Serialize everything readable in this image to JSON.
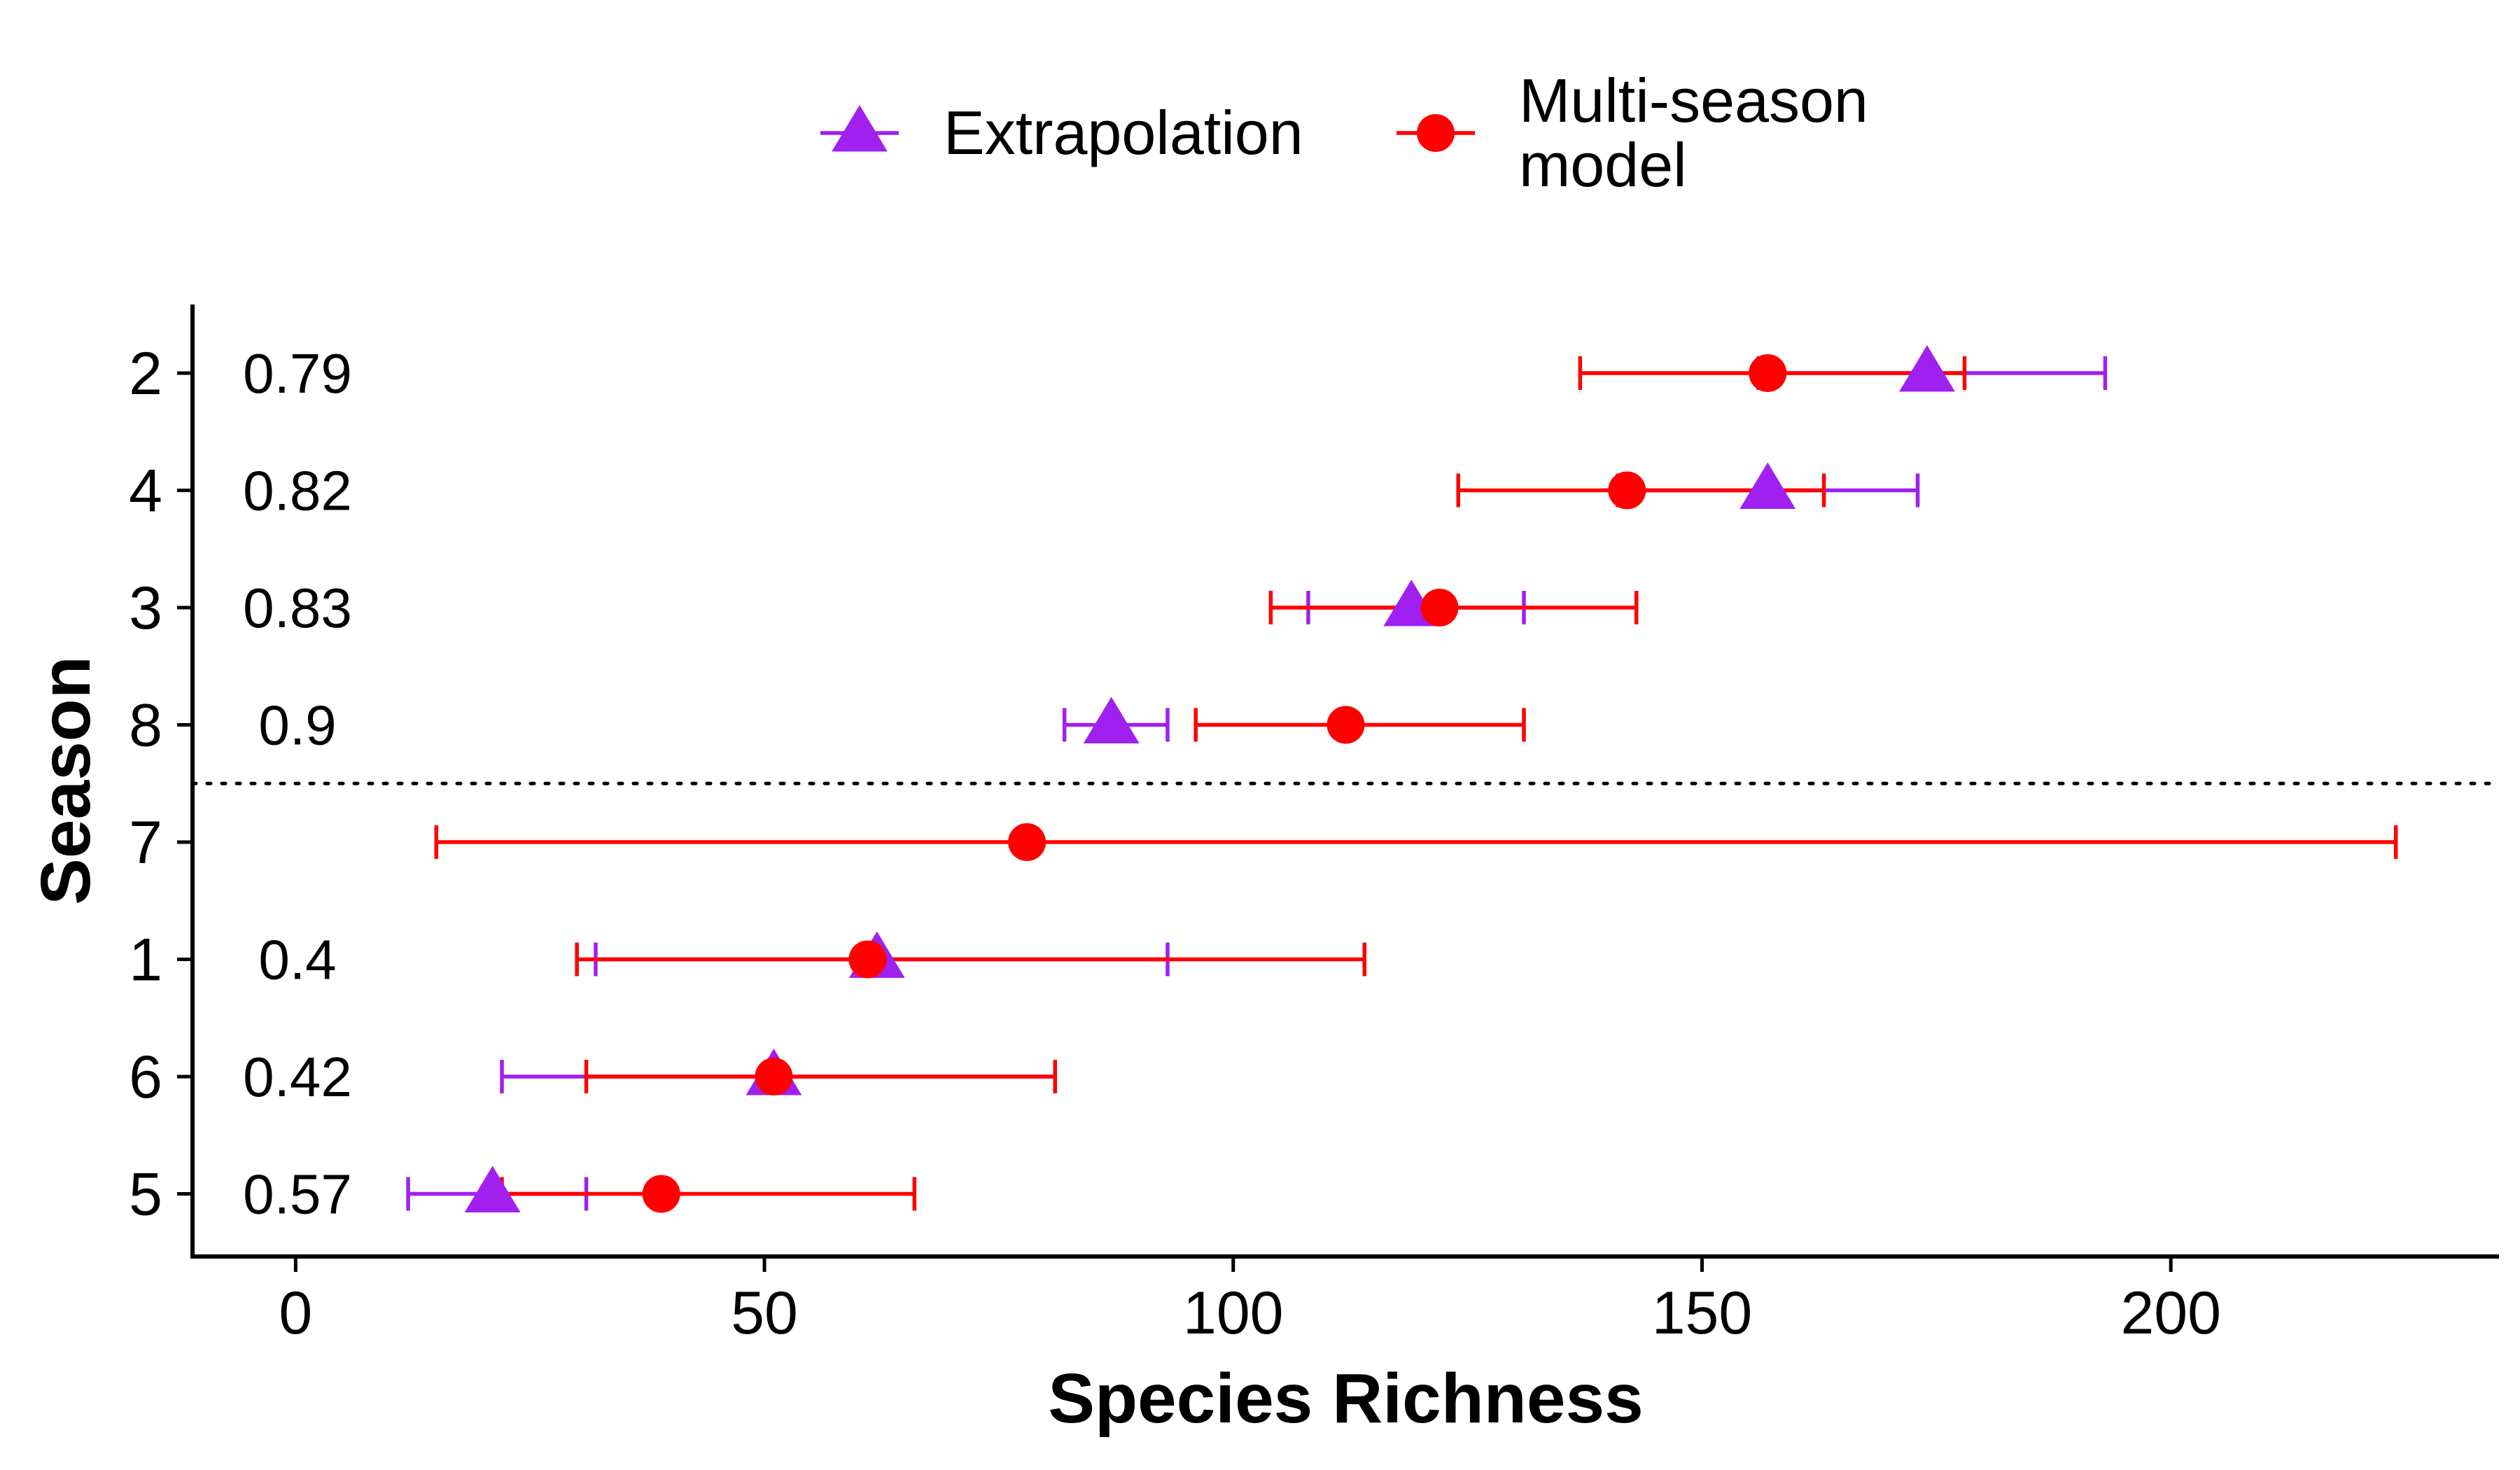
{
  "chart_data": {
    "type": "scatter",
    "subtype": "dot-and-whisker",
    "xlabel": "Species Richness",
    "ylabel": "Season",
    "xlim": [
      -11,
      235
    ],
    "xticks": [
      0,
      50,
      100,
      150,
      200
    ],
    "grid": false,
    "legend_position": "top",
    "categories": [
      "2",
      "4",
      "3",
      "8",
      "7",
      "1",
      "6",
      "5"
    ],
    "annotations": [
      "0.79",
      "0.82",
      "0.83",
      "0.9",
      "",
      "0.4",
      "0.42",
      "0.57"
    ],
    "divider": {
      "between": [
        "8",
        "7"
      ],
      "style": "dotted"
    },
    "series": [
      {
        "name": "Extrapolation",
        "marker": "triangle",
        "color": "#A020F0",
        "values": [
          174,
          157,
          119,
          87,
          null,
          62,
          51,
          21
        ],
        "lower": [
          156,
          141,
          108,
          82,
          null,
          32,
          22,
          12
        ],
        "upper": [
          193,
          173,
          131,
          93,
          null,
          93,
          81,
          31
        ]
      },
      {
        "name": "Multi-season\nmodel",
        "marker": "circle",
        "color": "#FF0000",
        "values": [
          157,
          142,
          122,
          112,
          78,
          61,
          51,
          39
        ],
        "lower": [
          137,
          124,
          104,
          96,
          15,
          30,
          31,
          22
        ],
        "upper": [
          178,
          163,
          143,
          131,
          224,
          114,
          81,
          66
        ]
      }
    ]
  }
}
